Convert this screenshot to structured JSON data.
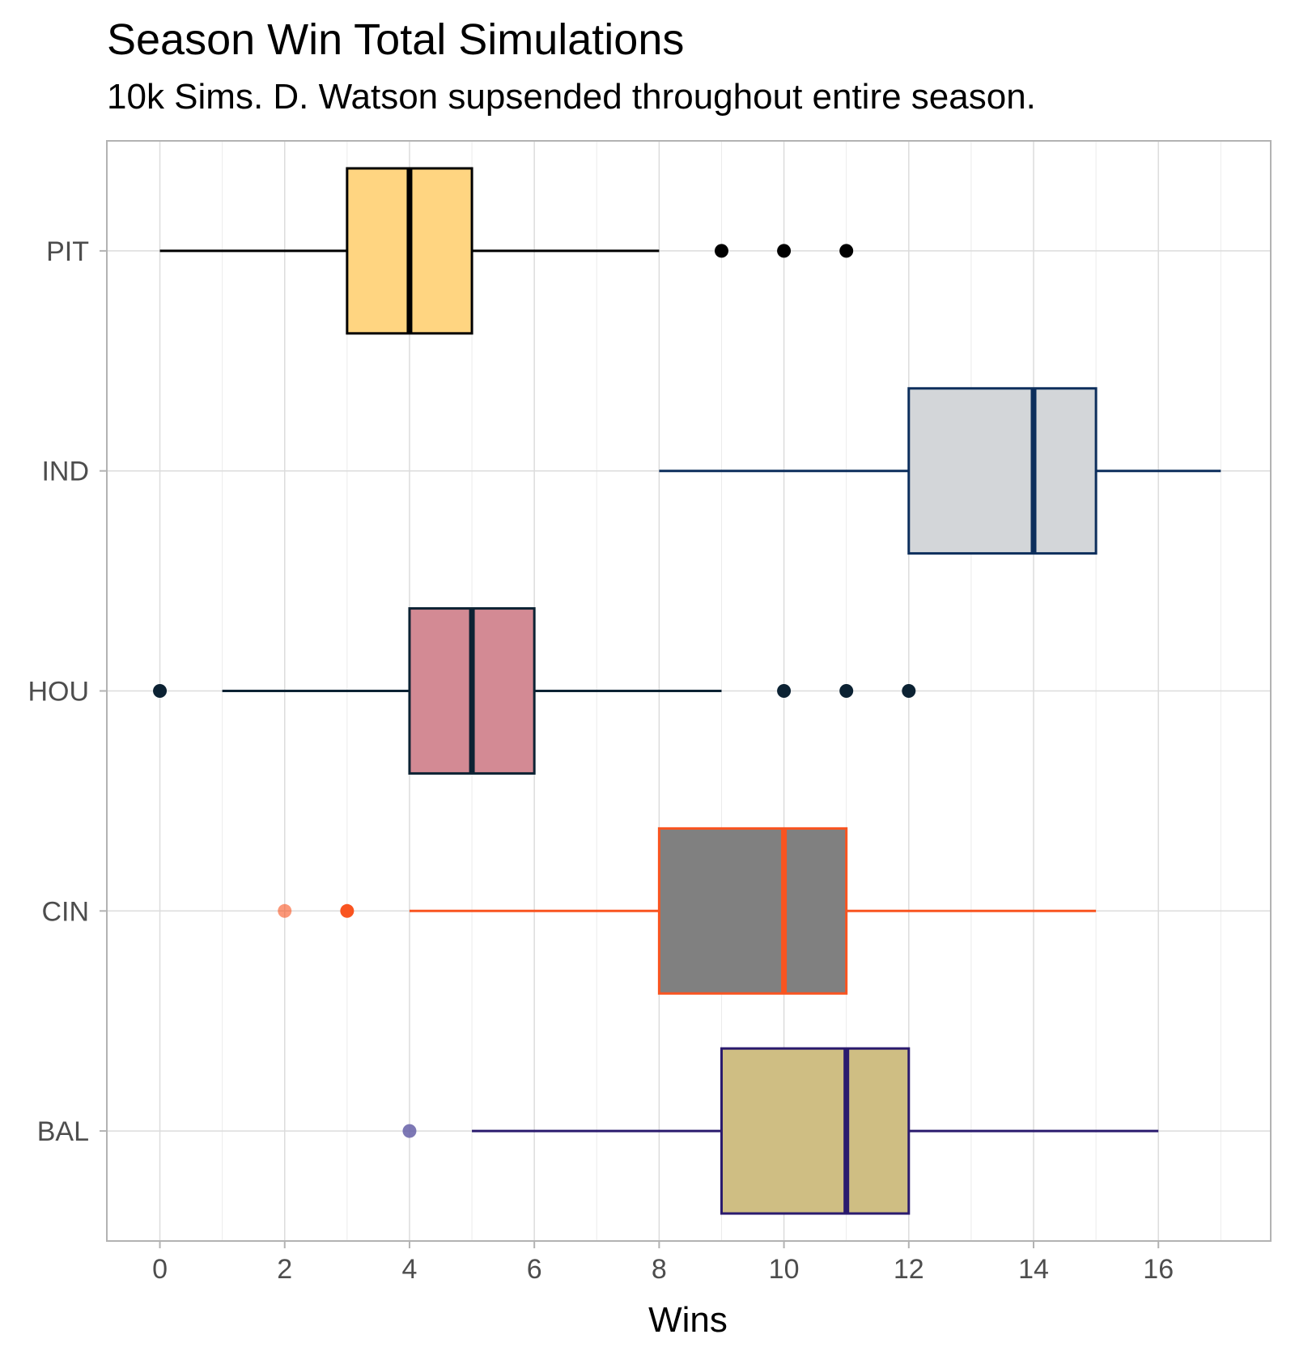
{
  "chart_data": {
    "type": "boxplot",
    "orientation": "horizontal",
    "title": "Season Win Total Simulations",
    "subtitle": "10k Sims. D. Watson supsended throughout entire season.",
    "xlabel": "Wins",
    "ylabel": "",
    "xlim": [
      -0.85,
      17.8
    ],
    "x_ticks": [
      0,
      2,
      4,
      6,
      8,
      10,
      12,
      14,
      16
    ],
    "grid": true,
    "legend": "none",
    "categories": [
      "PIT",
      "IND",
      "HOU",
      "CIN",
      "BAL"
    ],
    "series": [
      {
        "team": "PIT",
        "min": 0,
        "q1": 3,
        "median": 4,
        "q3": 5,
        "max": 8,
        "outliers": [
          9,
          10,
          11
        ],
        "fill": "#FFD581",
        "line": "#000000",
        "outlier_color": "#000000"
      },
      {
        "team": "IND",
        "min": 8,
        "q1": 12,
        "median": 14,
        "q3": 15,
        "max": 17,
        "outliers": [],
        "fill": "#D3D6D9",
        "line": "#0C2E5C",
        "outlier_color": "#0C2E5C"
      },
      {
        "team": "HOU",
        "min": 1,
        "q1": 4,
        "median": 5,
        "q3": 6,
        "max": 9,
        "outliers": [
          0,
          10,
          11,
          12
        ],
        "fill": "#D38A94",
        "line": "#0C2233",
        "outlier_color": "#0C2233"
      },
      {
        "team": "CIN",
        "min": 4,
        "q1": 8,
        "median": 10,
        "q3": 11,
        "max": 15,
        "outliers": [
          2,
          3
        ],
        "fill": "#808080",
        "line": "#F95420",
        "outlier_color": "#F95420"
      },
      {
        "team": "BAL",
        "min": 5,
        "q1": 9,
        "median": 11,
        "q3": 12,
        "max": 16,
        "outliers": [
          4
        ],
        "fill": "#CFBE83",
        "line": "#2A1A6E",
        "outlier_color": "#6660A8"
      }
    ]
  }
}
